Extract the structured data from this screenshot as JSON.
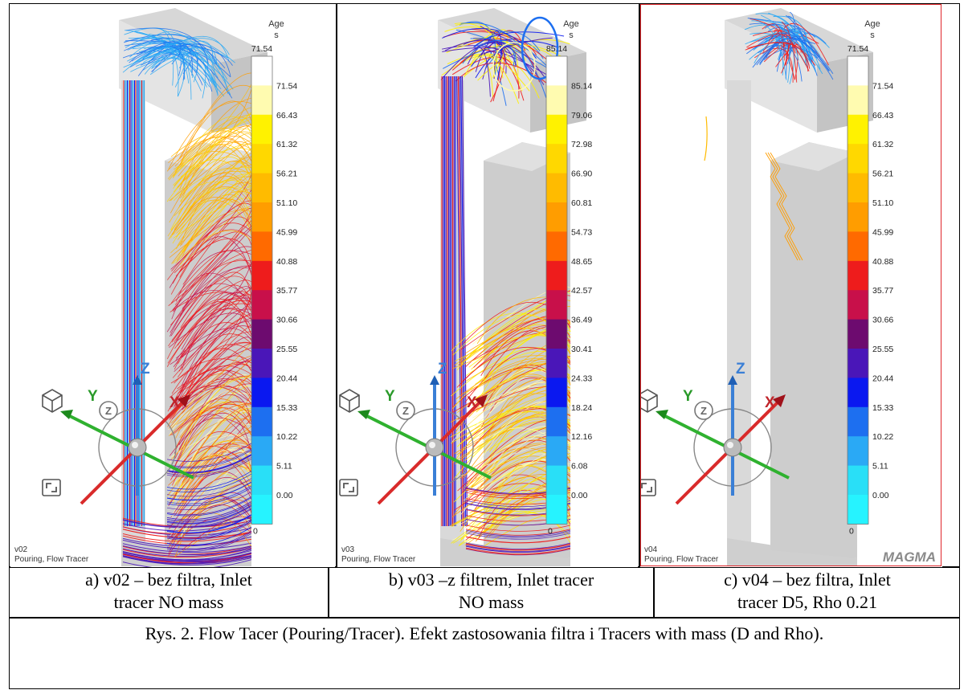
{
  "panels": [
    {
      "id": "v02",
      "legend_title": "Age",
      "legend_unit": "s",
      "legend_max": "71.54",
      "legend_values": [
        "71.54",
        "66.43",
        "61.32",
        "56.21",
        "51.10",
        "45.99",
        "40.88",
        "35.77",
        "30.66",
        "25.55",
        "20.44",
        "15.33",
        "10.22",
        "5.11",
        "0.00"
      ],
      "bottom_label": "0",
      "footer_version": "v02",
      "footer_mode": "Pouring, Flow Tracer",
      "caption_line1": "a) v02 – bez filtra, Inlet",
      "caption_line2": "tracer NO mass"
    },
    {
      "id": "v03",
      "legend_title": "Age",
      "legend_unit": "s",
      "legend_max": "85.14",
      "legend_values": [
        "85.14",
        "79.06",
        "72.98",
        "66.90",
        "60.81",
        "54.73",
        "48.65",
        "42.57",
        "36.49",
        "30.41",
        "24.33",
        "18.24",
        "12.16",
        "6.08",
        "0.00"
      ],
      "bottom_label": "0",
      "footer_version": "v03",
      "footer_mode": "Pouring, Flow Tracer",
      "caption_line1": "b) v03 –z filtrem, Inlet tracer",
      "caption_line2": "NO mass"
    },
    {
      "id": "v04",
      "legend_title": "Age",
      "legend_unit": "s",
      "legend_max": "71.54",
      "legend_values": [
        "71.54",
        "66.43",
        "61.32",
        "56.21",
        "51.10",
        "45.99",
        "40.88",
        "35.77",
        "30.66",
        "25.55",
        "20.44",
        "15.33",
        "10.22",
        "5.11",
        "0.00"
      ],
      "bottom_label": "0",
      "footer_version": "v04",
      "footer_mode": "Pouring, Flow Tracer",
      "logo_text": "MAGMA",
      "caption_line1": "c) v04 – bez filtra, Inlet",
      "caption_line2": "tracer D5, Rho 0.21"
    }
  ],
  "axes": {
    "x": "X",
    "y": "Y",
    "z": "Z",
    "zoom": "Z"
  },
  "legend_colors": [
    "#ffffff",
    "#fffbb0",
    "#fff200",
    "#ffd800",
    "#ffbb00",
    "#ff9d00",
    "#ff6a00",
    "#ee1c1c",
    "#c8104a",
    "#6d0b6f",
    "#4a16b8",
    "#0a18f0",
    "#1d6ff0",
    "#2aa9f5",
    "#29dff7",
    "#26f3ff"
  ],
  "figure_caption": "Rys. 2. Flow Tacer (Pouring/Tracer). Efekt zastosowania filtra i Tracers with mass (D and Rho)."
}
